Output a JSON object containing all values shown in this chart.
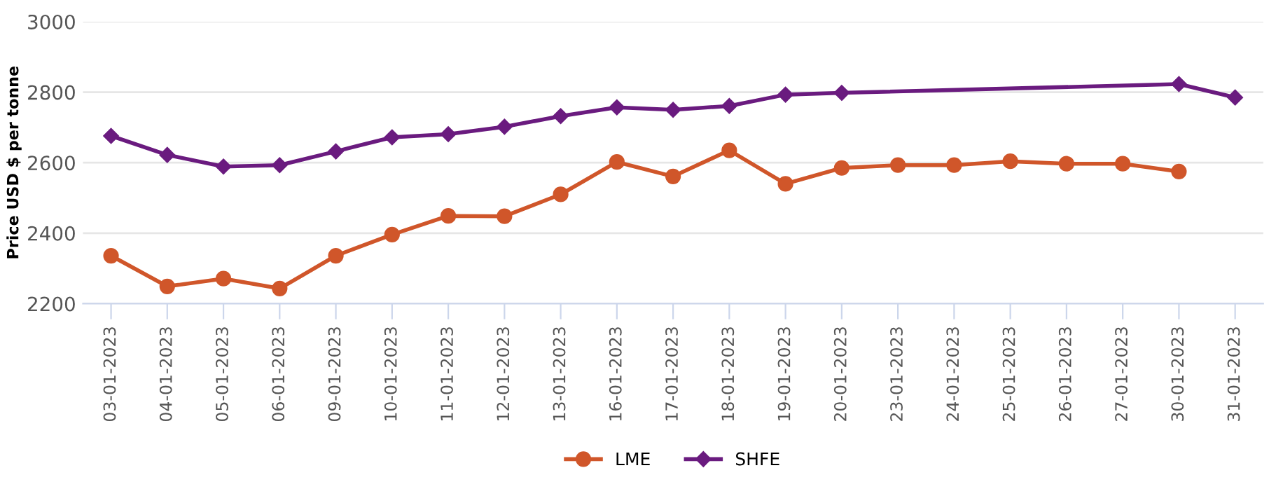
{
  "chart_data": {
    "type": "line",
    "ylabel": "Price USD $ per tonne",
    "categories": [
      "03-01-2023",
      "04-01-2023",
      "05-01-2023",
      "06-01-2023",
      "09-01-2023",
      "10-01-2023",
      "11-01-2023",
      "12-01-2023",
      "13-01-2023",
      "16-01-2023",
      "17-01-2023",
      "18-01-2023",
      "19-01-2023",
      "20-01-2023",
      "23-01-2023",
      "24-01-2023",
      "25-01-2023",
      "26-01-2023",
      "27-01-2023",
      "30-01-2023",
      "31-01-2023"
    ],
    "series": [
      {
        "name": "LME",
        "color": "#d0562a",
        "marker": "circle",
        "values": [
          2336,
          2249,
          2271,
          2243,
          2336,
          2396,
          2449,
          2448,
          2510,
          2602,
          2561,
          2635,
          2540,
          2585,
          2593,
          2593,
          2604,
          2597,
          2597,
          2575,
          null
        ]
      },
      {
        "name": "SHFE",
        "color": "#6a1b7f",
        "marker": "diamond",
        "values": [
          2676,
          2622,
          2589,
          2593,
          2632,
          2672,
          2681,
          2702,
          2732,
          2757,
          2750,
          2761,
          2793,
          2798,
          null,
          null,
          null,
          null,
          null,
          2823,
          2785
        ]
      }
    ],
    "ylim": [
      2200,
      3000
    ],
    "yticks": [
      2200,
      2400,
      2600,
      2800,
      3000
    ],
    "grid": "y",
    "legend": "bottom"
  }
}
